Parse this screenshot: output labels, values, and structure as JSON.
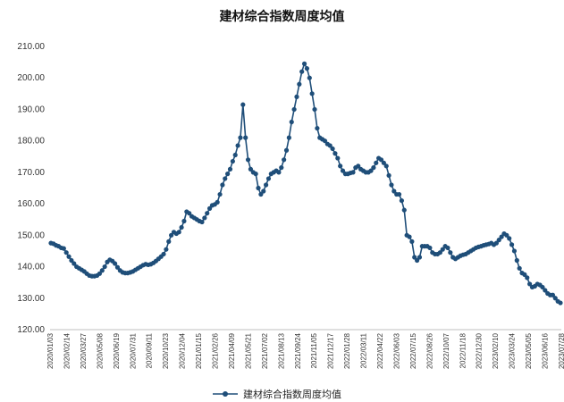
{
  "chart_data": {
    "type": "line",
    "title": "建材综合指数周度均值",
    "xlabel": "",
    "ylabel": "",
    "ylim": [
      120,
      210
    ],
    "y_ticks": [
      "120.00",
      "130.00",
      "140.00",
      "150.00",
      "160.00",
      "170.00",
      "180.00",
      "190.00",
      "200.00",
      "210.00"
    ],
    "x_ticks": [
      "2020/01/03",
      "2020/02/14",
      "2020/03/27",
      "2020/05/08",
      "2020/06/19",
      "2020/07/31",
      "2020/09/11",
      "2020/10/23",
      "2020/12/04",
      "2021/01/15",
      "2021/02/26",
      "2021/04/09",
      "2021/05/21",
      "2021/07/02",
      "2021/08/13",
      "2021/09/24",
      "2021/11/05",
      "2021/12/17",
      "2022/01/28",
      "2022/03/11",
      "2022/04/22",
      "2022/06/03",
      "2022/07/15",
      "2022/08/26",
      "2022/10/07",
      "2022/11/18",
      "2022/12/30",
      "2023/02/10",
      "2023/03/24",
      "2023/05/05",
      "2023/06/16",
      "2023/07/28"
    ],
    "legend": "bottom",
    "grid": false,
    "color": "#1f4e79",
    "series": [
      {
        "name": "建材综合指数周度均值",
        "values": [
          147.5,
          147.3,
          146.8,
          146.5,
          146.0,
          145.8,
          144.5,
          143.2,
          142.0,
          141.0,
          140.0,
          139.5,
          139.0,
          138.5,
          137.8,
          137.2,
          137.0,
          137.0,
          137.2,
          137.8,
          138.8,
          140.0,
          141.5,
          142.2,
          141.8,
          141.0,
          139.8,
          138.8,
          138.2,
          138.0,
          138.0,
          138.2,
          138.5,
          139.0,
          139.5,
          140.0,
          140.5,
          140.8,
          140.6,
          140.8,
          141.2,
          141.8,
          142.5,
          143.2,
          144.0,
          145.5,
          148.0,
          150.0,
          151.0,
          150.5,
          151.0,
          152.5,
          154.5,
          157.5,
          157.0,
          156.0,
          155.5,
          155.0,
          154.5,
          154.2,
          155.5,
          157.0,
          158.5,
          159.5,
          159.8,
          160.5,
          163.0,
          166.0,
          168.0,
          169.5,
          171.0,
          173.5,
          175.5,
          178.5,
          181.0,
          191.5,
          181.0,
          174.0,
          171.0,
          170.0,
          169.5,
          165.0,
          163.0,
          164.0,
          166.0,
          168.0,
          169.5,
          170.0,
          170.5,
          170.0,
          171.5,
          174.0,
          177.0,
          181.0,
          186.0,
          190.0,
          194.0,
          198.0,
          202.0,
          204.5,
          203.0,
          200.0,
          195.0,
          190.0,
          184.0,
          181.0,
          180.5,
          180.0,
          179.0,
          178.5,
          177.5,
          176.0,
          174.5,
          172.0,
          170.5,
          169.5,
          169.5,
          169.8,
          170.0,
          171.5,
          172.0,
          171.0,
          170.5,
          170.0,
          170.0,
          170.5,
          171.5,
          173.0,
          174.5,
          174.0,
          173.0,
          172.0,
          169.0,
          166.0,
          164.0,
          163.0,
          163.0,
          161.0,
          158.0,
          150.0,
          149.5,
          148.0,
          143.0,
          142.0,
          143.0,
          146.5,
          146.5,
          146.5,
          146.0,
          144.5,
          144.0,
          144.0,
          144.5,
          145.5,
          146.5,
          146.0,
          144.5,
          143.0,
          142.5,
          143.0,
          143.5,
          143.8,
          144.0,
          144.5,
          145.0,
          145.5,
          146.0,
          146.3,
          146.5,
          146.8,
          147.0,
          147.2,
          147.5,
          147.0,
          147.5,
          148.5,
          149.5,
          150.5,
          150.0,
          149.0,
          147.0,
          145.0,
          142.0,
          139.5,
          138.0,
          137.5,
          136.5,
          134.5,
          133.5,
          133.8,
          134.5,
          134.2,
          133.5,
          132.5,
          131.5,
          131.0,
          131.0,
          130.0,
          129.0,
          128.5
        ]
      }
    ]
  }
}
